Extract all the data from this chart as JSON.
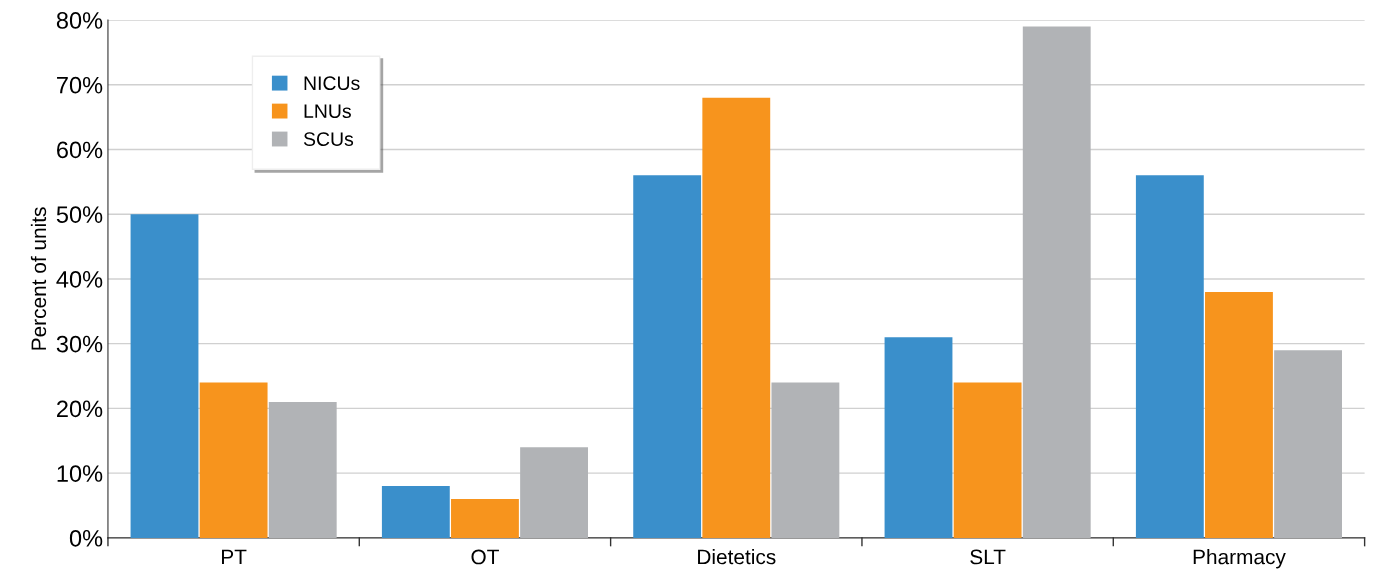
{
  "chart_data": {
    "type": "bar",
    "ylabel": "Percent of units",
    "categories": [
      "PT",
      "OT",
      "Dietetics",
      "SLT",
      "Pharmacy"
    ],
    "series": [
      {
        "name": "NICUs",
        "color": "#3a8fcb",
        "values": [
          50,
          8,
          56,
          31,
          56
        ]
      },
      {
        "name": "LNUs",
        "color": "#f7941d",
        "values": [
          24,
          6,
          68,
          24,
          38
        ]
      },
      {
        "name": "SCUs",
        "color": "#b1b3b6",
        "values": [
          21,
          14,
          24,
          79,
          29
        ]
      }
    ],
    "ylim": [
      0,
      80
    ],
    "yticks": [
      {
        "value": 0,
        "label": "0%"
      },
      {
        "value": 10,
        "label": "10%"
      },
      {
        "value": 20,
        "label": "20%"
      },
      {
        "value": 30,
        "label": "30%"
      },
      {
        "value": 40,
        "label": "40%"
      },
      {
        "value": 50,
        "label": "50%"
      },
      {
        "value": 60,
        "label": "60%"
      },
      {
        "value": 70,
        "label": "70%"
      },
      {
        "value": 80,
        "label": "80%"
      }
    ],
    "grid": "y",
    "legend": "top left"
  }
}
